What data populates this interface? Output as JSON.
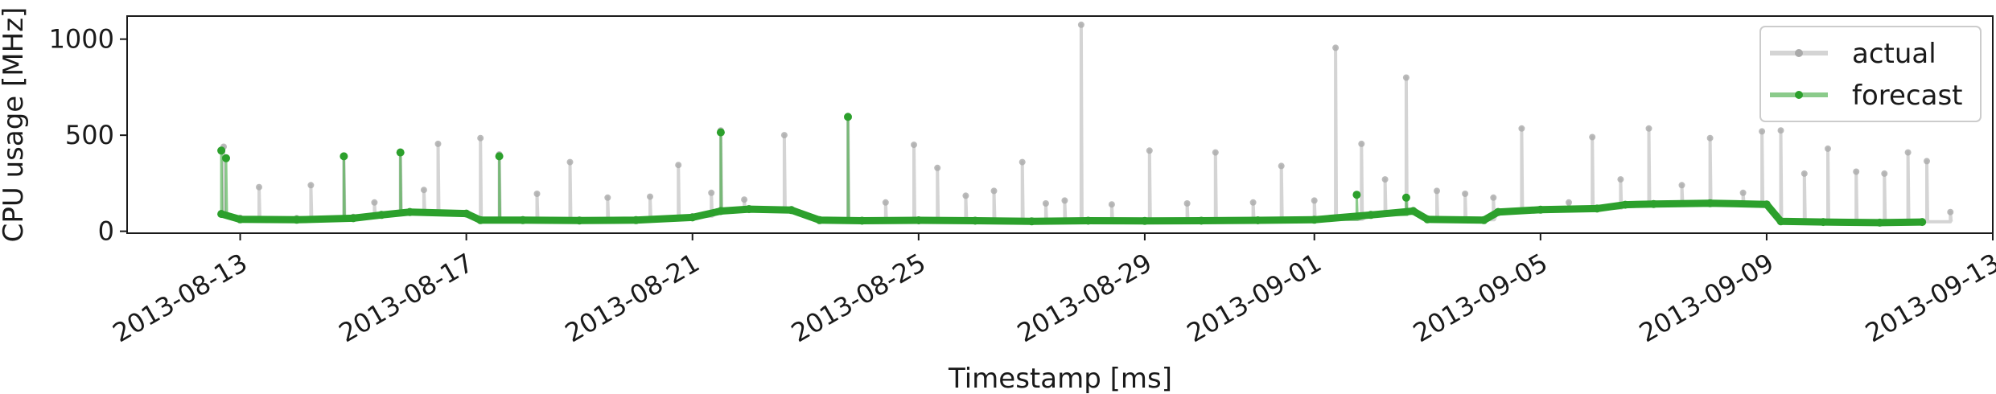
{
  "chart_data": {
    "type": "line",
    "xlabel": "Timestamp [ms]",
    "ylabel": "CPU usage [MHz]",
    "x_range": [
      "2013-08-11",
      "2013-09-13"
    ],
    "ylim": [
      -10,
      1120
    ],
    "x_ticks": [
      "2013-08-13",
      "2013-08-17",
      "2013-08-21",
      "2013-08-25",
      "2013-08-29",
      "2013-09-01",
      "2013-09-05",
      "2013-09-09",
      "2013-09-13"
    ],
    "y_ticks": [
      0,
      500,
      1000
    ],
    "grid": false,
    "legend": {
      "position": "top-right",
      "entries": [
        "actual",
        "forecast"
      ]
    },
    "series": [
      {
        "name": "actual",
        "color": "#aaaaaa",
        "baseline": [
          [
            "2013-08-12 16:00",
            95
          ],
          [
            "2013-08-13 00:00",
            70
          ],
          [
            "2013-08-14 00:00",
            68
          ],
          [
            "2013-08-15 00:00",
            75
          ],
          [
            "2013-08-15 12:00",
            90
          ],
          [
            "2013-08-16 00:00",
            105
          ],
          [
            "2013-08-17 00:00",
            95
          ],
          [
            "2013-08-17 06:00",
            60
          ],
          [
            "2013-08-18 00:00",
            62
          ],
          [
            "2013-08-19 00:00",
            60
          ],
          [
            "2013-08-20 00:00",
            62
          ],
          [
            "2013-08-21 00:00",
            78
          ],
          [
            "2013-08-21 12:00",
            110
          ],
          [
            "2013-08-22 00:00",
            120
          ],
          [
            "2013-08-22 18:00",
            115
          ],
          [
            "2013-08-23 06:00",
            60
          ],
          [
            "2013-08-24 00:00",
            58
          ],
          [
            "2013-08-25 00:00",
            60
          ],
          [
            "2013-08-26 00:00",
            58
          ],
          [
            "2013-08-27 00:00",
            55
          ],
          [
            "2013-08-28 00:00",
            58
          ],
          [
            "2013-08-29 00:00",
            57
          ],
          [
            "2013-08-30 00:00",
            58
          ],
          [
            "2013-08-31 00:00",
            60
          ],
          [
            "2013-09-01 00:00",
            62
          ],
          [
            "2013-09-02 00:00",
            90
          ],
          [
            "2013-09-02 18:00",
            110
          ],
          [
            "2013-09-03 00:00",
            65
          ],
          [
            "2013-09-04 00:00",
            60
          ],
          [
            "2013-09-04 06:00",
            105
          ],
          [
            "2013-09-05 00:00",
            115
          ],
          [
            "2013-09-06 00:00",
            120
          ],
          [
            "2013-09-06 12:00",
            140
          ],
          [
            "2013-09-07 00:00",
            145
          ],
          [
            "2013-09-08 00:00",
            148
          ],
          [
            "2013-09-09 00:00",
            142
          ],
          [
            "2013-09-09 06:00",
            55
          ],
          [
            "2013-09-10 00:00",
            50
          ],
          [
            "2013-09-11 00:00",
            48
          ],
          [
            "2013-09-11 18:00",
            50
          ]
        ],
        "spikes": [
          [
            "2013-08-12 17:00",
            440
          ],
          [
            "2013-08-13 08:00",
            230
          ],
          [
            "2013-08-14 06:00",
            240
          ],
          [
            "2013-08-14 20:00",
            390
          ],
          [
            "2013-08-15 09:00",
            150
          ],
          [
            "2013-08-15 20:00",
            415
          ],
          [
            "2013-08-16 06:00",
            215
          ],
          [
            "2013-08-16 12:00",
            455
          ],
          [
            "2013-08-17 06:00",
            485
          ],
          [
            "2013-08-17 14:00",
            400
          ],
          [
            "2013-08-18 06:00",
            195
          ],
          [
            "2013-08-18 20:00",
            360
          ],
          [
            "2013-08-19 12:00",
            175
          ],
          [
            "2013-08-20 06:00",
            180
          ],
          [
            "2013-08-20 18:00",
            345
          ],
          [
            "2013-08-21 08:00",
            200
          ],
          [
            "2013-08-21 12:00",
            525
          ],
          [
            "2013-08-21 22:00",
            165
          ],
          [
            "2013-08-22 15:00",
            500
          ],
          [
            "2013-08-23 18:00",
            600
          ],
          [
            "2013-08-24 10:00",
            150
          ],
          [
            "2013-08-24 22:00",
            450
          ],
          [
            "2013-08-25 08:00",
            330
          ],
          [
            "2013-08-25 20:00",
            185
          ],
          [
            "2013-08-26 08:00",
            210
          ],
          [
            "2013-08-26 20:00",
            360
          ],
          [
            "2013-08-27 06:00",
            145
          ],
          [
            "2013-08-27 14:00",
            160
          ],
          [
            "2013-08-27 21:00",
            1075
          ],
          [
            "2013-08-28 10:00",
            140
          ],
          [
            "2013-08-29 02:00",
            420
          ],
          [
            "2013-08-29 18:00",
            145
          ],
          [
            "2013-08-30 06:00",
            410
          ],
          [
            "2013-08-30 22:00",
            150
          ],
          [
            "2013-08-31 10:00",
            340
          ],
          [
            "2013-09-01 00:00",
            160
          ],
          [
            "2013-09-01 09:00",
            955
          ],
          [
            "2013-09-01 20:00",
            455
          ],
          [
            "2013-09-02 06:00",
            270
          ],
          [
            "2013-09-02 15:00",
            800
          ],
          [
            "2013-09-03 04:00",
            210
          ],
          [
            "2013-09-03 16:00",
            195
          ],
          [
            "2013-09-04 04:00",
            175
          ],
          [
            "2013-09-04 16:00",
            535
          ],
          [
            "2013-09-05 12:00",
            150
          ],
          [
            "2013-09-05 22:00",
            490
          ],
          [
            "2013-09-06 10:00",
            270
          ],
          [
            "2013-09-06 22:00",
            535
          ],
          [
            "2013-09-07 12:00",
            240
          ],
          [
            "2013-09-08 00:00",
            485
          ],
          [
            "2013-09-08 14:00",
            200
          ],
          [
            "2013-09-08 22:00",
            520
          ],
          [
            "2013-09-09 06:00",
            525
          ],
          [
            "2013-09-09 16:00",
            300
          ],
          [
            "2013-09-10 02:00",
            430
          ],
          [
            "2013-09-10 14:00",
            310
          ],
          [
            "2013-09-11 02:00",
            300
          ],
          [
            "2013-09-11 12:00",
            410
          ],
          [
            "2013-09-11 20:00",
            365
          ],
          [
            "2013-09-12 06:00",
            100
          ]
        ]
      },
      {
        "name": "forecast",
        "color": "#2ca02c",
        "baseline": [
          [
            "2013-08-12 16:00",
            90
          ],
          [
            "2013-08-13 00:00",
            62
          ],
          [
            "2013-08-14 00:00",
            60
          ],
          [
            "2013-08-15 00:00",
            68
          ],
          [
            "2013-08-15 12:00",
            85
          ],
          [
            "2013-08-16 00:00",
            100
          ],
          [
            "2013-08-17 00:00",
            92
          ],
          [
            "2013-08-17 06:00",
            58
          ],
          [
            "2013-08-18 00:00",
            58
          ],
          [
            "2013-08-19 00:00",
            56
          ],
          [
            "2013-08-20 00:00",
            58
          ],
          [
            "2013-08-21 00:00",
            72
          ],
          [
            "2013-08-21 12:00",
            105
          ],
          [
            "2013-08-22 00:00",
            115
          ],
          [
            "2013-08-22 18:00",
            110
          ],
          [
            "2013-08-23 06:00",
            58
          ],
          [
            "2013-08-24 00:00",
            55
          ],
          [
            "2013-08-25 00:00",
            57
          ],
          [
            "2013-08-26 00:00",
            55
          ],
          [
            "2013-08-27 00:00",
            52
          ],
          [
            "2013-08-28 00:00",
            55
          ],
          [
            "2013-08-29 00:00",
            54
          ],
          [
            "2013-08-30 00:00",
            55
          ],
          [
            "2013-08-31 00:00",
            57
          ],
          [
            "2013-09-01 00:00",
            60
          ],
          [
            "2013-09-02 00:00",
            85
          ],
          [
            "2013-09-02 18:00",
            105
          ],
          [
            "2013-09-03 00:00",
            62
          ],
          [
            "2013-09-04 00:00",
            58
          ],
          [
            "2013-09-04 06:00",
            100
          ],
          [
            "2013-09-05 00:00",
            112
          ],
          [
            "2013-09-06 00:00",
            118
          ],
          [
            "2013-09-06 12:00",
            138
          ],
          [
            "2013-09-07 00:00",
            142
          ],
          [
            "2013-09-08 00:00",
            146
          ],
          [
            "2013-09-09 00:00",
            140
          ],
          [
            "2013-09-09 06:00",
            52
          ],
          [
            "2013-09-10 00:00",
            48
          ],
          [
            "2013-09-11 00:00",
            45
          ],
          [
            "2013-09-11 18:00",
            48
          ]
        ],
        "spikes": [
          [
            "2013-08-12 16:00",
            420
          ],
          [
            "2013-08-12 18:00",
            380
          ],
          [
            "2013-08-14 20:00",
            390
          ],
          [
            "2013-08-15 20:00",
            410
          ],
          [
            "2013-08-17 14:00",
            390
          ],
          [
            "2013-08-21 12:00",
            515
          ],
          [
            "2013-08-23 18:00",
            595
          ],
          [
            "2013-09-01 18:00",
            190
          ],
          [
            "2013-09-02 15:00",
            175
          ]
        ]
      }
    ]
  }
}
